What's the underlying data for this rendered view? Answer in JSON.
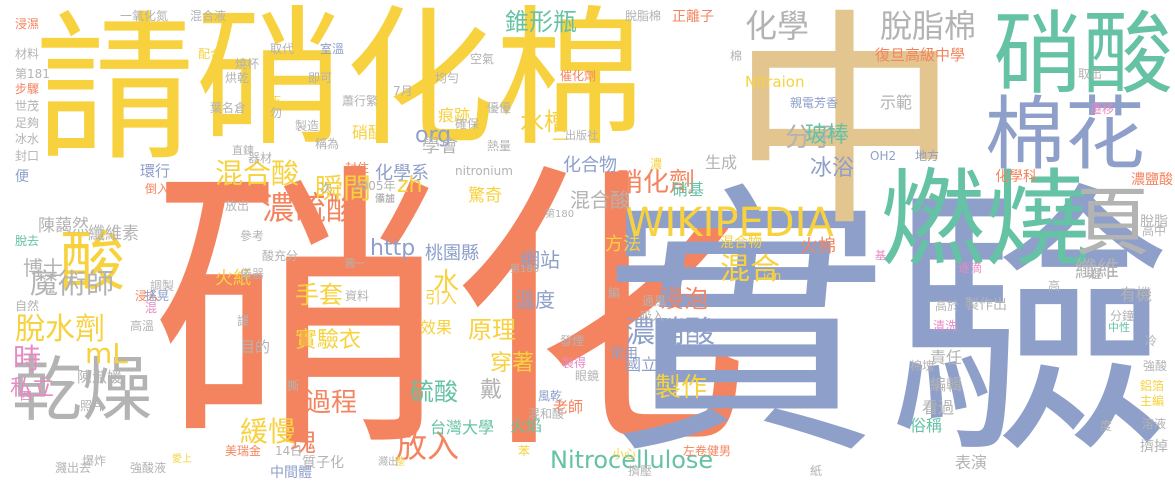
{
  "palette": {
    "yellow": "#f7d23e",
    "orange": "#f4845f",
    "tan": "#e3c58f",
    "blue": "#8e9fca",
    "green": "#66c2a5",
    "pink": "#e78ac3",
    "gray": "#b3b3b3",
    "lime": "#a6d854"
  },
  "words": [
    {
      "t": "硝化",
      "c": "orange"
    },
    {
      "t": "實驗",
      "c": "blue"
    },
    {
      "t": "中",
      "c": "tan"
    },
    {
      "t": "硝化棉",
      "c": "yellow"
    },
    {
      "t": "請",
      "c": "yellow"
    },
    {
      "t": "燃燒",
      "c": "green"
    },
    {
      "t": "硝酸",
      "c": "green"
    },
    {
      "t": "棉花",
      "c": "blue"
    },
    {
      "t": "乾燥",
      "c": "gray"
    },
    {
      "t": "頁",
      "c": "gray"
    },
    {
      "t": "酸",
      "c": "yellow"
    },
    {
      "t": "WIKIPEDIA",
      "c": "yellow"
    },
    {
      "t": "化學",
      "c": "gray"
    },
    {
      "t": "脫",
      "c": "gray"
    },
    {
      "t": "脂棉",
      "c": "gray"
    },
    {
      "t": "混合酸",
      "c": "yellow"
    },
    {
      "t": "魔術師",
      "c": "gray"
    },
    {
      "t": "脫水劑",
      "c": "yellow"
    },
    {
      "t": "mL",
      "c": "yellow"
    },
    {
      "t": "時",
      "c": "pink"
    },
    {
      "t": "濃硫酸",
      "c": "orange"
    },
    {
      "t": "瞬間",
      "c": "yellow"
    },
    {
      "t": "過程",
      "c": "orange"
    },
    {
      "t": "緩慢",
      "c": "yellow"
    },
    {
      "t": "塊",
      "c": "orange"
    },
    {
      "t": "放入",
      "c": "orange"
    },
    {
      "t": "硝化劑",
      "c": "orange"
    },
    {
      "t": "濃硝酸",
      "c": "blue"
    },
    {
      "t": "混合",
      "c": "yellow"
    },
    {
      "t": "Nitrocellulose",
      "c": "green"
    },
    {
      "t": "錐形瓶",
      "c": "green"
    },
    {
      "t": "水槽",
      "c": "yellow"
    },
    {
      "t": "分子",
      "c": "gray"
    },
    {
      "t": "冰浴",
      "c": "blue"
    },
    {
      "t": "玻棒",
      "c": "green"
    },
    {
      "t": "纖維",
      "c": "gray"
    },
    {
      "t": "手套",
      "c": "yellow"
    },
    {
      "t": "實驗衣",
      "c": "yellow"
    },
    {
      "t": "浸泡",
      "c": "orange"
    },
    {
      "t": "製作",
      "c": "yellow"
    },
    {
      "t": "原理",
      "c": "yellow"
    },
    {
      "t": "穿著",
      "c": "yellow"
    },
    {
      "t": "硫酸",
      "c": "green"
    },
    {
      "t": "戴",
      "c": "gray"
    },
    {
      "t": "水",
      "c": "yellow"
    },
    {
      "t": "網站",
      "c": "blue"
    },
    {
      "t": "溫度",
      "c": "blue"
    },
    {
      "t": "org",
      "c": "blue"
    },
    {
      "t": "zh",
      "c": "yellow"
    },
    {
      "t": "http",
      "c": "blue"
    },
    {
      "t": "混合酸",
      "c": "gray"
    },
    {
      "t": "化學系",
      "c": "blue"
    },
    {
      "t": "桃園縣",
      "c": "blue"
    },
    {
      "t": "台灣大學",
      "c": "green"
    },
    {
      "t": "火焰",
      "c": "green"
    },
    {
      "t": "學會",
      "c": "gray"
    },
    {
      "t": "痕跡",
      "c": "yellow"
    },
    {
      "t": "硝基",
      "c": "green"
    },
    {
      "t": "生成",
      "c": "gray"
    },
    {
      "t": "示範",
      "c": "gray"
    },
    {
      "t": "責任",
      "c": "gray"
    },
    {
      "t": "有機",
      "c": "gray"
    },
    {
      "t": "私立",
      "c": "pink"
    },
    {
      "t": "博士",
      "c": "gray"
    },
    {
      "t": "火紙",
      "c": "yellow"
    },
    {
      "t": "引入",
      "c": "yellow"
    },
    {
      "t": "效果",
      "c": "yellow"
    },
    {
      "t": "方法",
      "c": "yellow"
    },
    {
      "t": "火棉",
      "c": "orange"
    },
    {
      "t": "表演",
      "c": "gray"
    },
    {
      "t": "俗稱",
      "c": "green"
    },
    {
      "t": "看過",
      "c": "gray"
    },
    {
      "t": "編輯",
      "c": "gray"
    },
    {
      "t": "Nitraion",
      "c": "yellow"
    },
    {
      "t": "復旦高級中學",
      "c": "orange"
    },
    {
      "t": "正離子",
      "c": "orange"
    },
    {
      "t": "陳藹然",
      "c": "gray"
    },
    {
      "t": "纖維素",
      "c": "gray"
    },
    {
      "t": "陳淑媛",
      "c": "gray"
    },
    {
      "t": "老師",
      "c": "orange"
    },
    {
      "t": "國立",
      "c": "blue"
    },
    {
      "t": "化合物",
      "c": "blue"
    },
    {
      "t": "混合物",
      "c": "yellow"
    },
    {
      "t": "製作出",
      "c": "gray"
    },
    {
      "t": "中間體",
      "c": "blue"
    },
    {
      "t": "質子化",
      "c": "gray"
    },
    {
      "t": "二",
      "c": "yellow"
    },
    {
      "t": "驚奇",
      "c": "yellow"
    },
    {
      "t": "硝醯",
      "c": "yellow"
    },
    {
      "t": "環行",
      "c": "blue"
    },
    {
      "t": "目的",
      "c": "gray"
    },
    {
      "t": "常用",
      "c": "blue"
    },
    {
      "t": "nitronium",
      "c": "gray"
    },
    {
      "t": "混合液",
      "c": "gray"
    },
    {
      "t": "一氧化氮",
      "c": "gray"
    },
    {
      "t": "取代",
      "c": "gray"
    },
    {
      "t": "配合",
      "c": "yellow"
    },
    {
      "t": "燒杯",
      "c": "gray"
    },
    {
      "t": "烘乾",
      "c": "gray"
    },
    {
      "t": "即可",
      "c": "gray"
    },
    {
      "t": "室溫",
      "c": "blue"
    },
    {
      "t": "空氣",
      "c": "gray"
    },
    {
      "t": "均勻",
      "c": "gray"
    },
    {
      "t": "催化劑",
      "c": "orange"
    },
    {
      "t": "脫脂棉",
      "c": "gray"
    },
    {
      "t": "棉",
      "c": "gray"
    },
    {
      "t": "取出",
      "c": "gray"
    },
    {
      "t": "親電芳香",
      "c": "blue"
    },
    {
      "t": "OH2",
      "c": "blue"
    },
    {
      "t": "地方",
      "c": "blue"
    },
    {
      "t": "濃",
      "c": "yellow"
    },
    {
      "t": "化學科",
      "c": "orange"
    },
    {
      "t": "分鐘",
      "c": "gray"
    },
    {
      "t": "濃鹽酸",
      "c": "orange"
    },
    {
      "t": "脫脂",
      "c": "gray"
    },
    {
      "t": "基",
      "c": "pink"
    },
    {
      "t": "高於",
      "c": "gray"
    },
    {
      "t": "清洗",
      "c": "pink"
    },
    {
      "t": "中性",
      "c": "green"
    },
    {
      "t": "強酸",
      "c": "gray"
    },
    {
      "t": "鋁箔",
      "c": "yellow"
    },
    {
      "t": "主編",
      "c": "yellow"
    },
    {
      "t": "溶液",
      "c": "gray"
    },
    {
      "t": "擠掉",
      "c": "gray"
    },
    {
      "t": "紙",
      "c": "gray"
    },
    {
      "t": "擠壓",
      "c": "gray"
    },
    {
      "t": "發煙",
      "c": "gray"
    },
    {
      "t": "製得",
      "c": "pink"
    },
    {
      "t": "混和酸",
      "c": "gray"
    },
    {
      "t": "風乾",
      "c": "blue"
    },
    {
      "t": "小心",
      "c": "yellow"
    },
    {
      "t": "左卷健男",
      "c": "orange"
    },
    {
      "t": "眼鏡",
      "c": "gray"
    },
    {
      "t": "苯",
      "c": "yellow"
    },
    {
      "t": "整",
      "c": "yellow"
    },
    {
      "t": "濺出",
      "c": "gray"
    },
    {
      "t": "14日",
      "c": "gray"
    },
    {
      "t": "美瑞金",
      "c": "orange"
    },
    {
      "t": "愛上",
      "c": "yellow"
    },
    {
      "t": "強酸液",
      "c": "gray"
    },
    {
      "t": "爆炸",
      "c": "gray"
    },
    {
      "t": "濺出去",
      "c": "gray"
    },
    {
      "t": "照片",
      "c": "gray"
    },
    {
      "t": "四",
      "c": "pink"
    },
    {
      "t": "高溫",
      "c": "gray"
    },
    {
      "t": "調製",
      "c": "gray"
    },
    {
      "t": "混",
      "c": "pink"
    },
    {
      "t": "浸入",
      "c": "orange"
    },
    {
      "t": "搖晃",
      "c": "blue"
    },
    {
      "t": "自然",
      "c": "gray"
    },
    {
      "t": "脫去",
      "c": "green"
    },
    {
      "t": "便",
      "c": "blue"
    },
    {
      "t": "封口",
      "c": "gray"
    },
    {
      "t": "冰水",
      "c": "gray"
    },
    {
      "t": "足夠",
      "c": "gray"
    },
    {
      "t": "世茂",
      "c": "gray"
    },
    {
      "t": "步驟",
      "c": "orange"
    },
    {
      "t": "第181",
      "c": "gray"
    },
    {
      "t": "材料",
      "c": "gray"
    },
    {
      "t": "浸濕",
      "c": "orange"
    },
    {
      "t": "倒入",
      "c": "orange"
    },
    {
      "t": "封住",
      "c": "orange"
    },
    {
      "t": "2005年",
      "c": "gray"
    },
    {
      "t": "次",
      "c": "gray"
    },
    {
      "t": "放出",
      "c": "gray"
    },
    {
      "t": "添加",
      "c": "gray"
    },
    {
      "t": "備註",
      "c": "gray"
    },
    {
      "t": "第180",
      "c": "gray"
    },
    {
      "t": "第180",
      "c": "gray"
    },
    {
      "t": "圖一",
      "c": "gray"
    },
    {
      "t": "酸充分",
      "c": "gray"
    },
    {
      "t": "參考",
      "c": "gray"
    },
    {
      "t": "儀器",
      "c": "gray"
    },
    {
      "t": "資料",
      "c": "gray"
    },
    {
      "t": "譯",
      "c": "gray"
    },
    {
      "t": "撕",
      "c": "gray"
    },
    {
      "t": "五",
      "c": "yellow"
    },
    {
      "t": "葉名倉",
      "c": "gray"
    },
    {
      "t": "勿",
      "c": "gray"
    },
    {
      "t": "直鍊",
      "c": "gray"
    },
    {
      "t": "稱為",
      "c": "gray"
    },
    {
      "t": "器材",
      "c": "gray"
    },
    {
      "t": "製造",
      "c": "gray"
    },
    {
      "t": "蕭行繁",
      "c": "gray"
    },
    {
      "t": "7月",
      "c": "gray"
    },
    {
      "t": "優優",
      "c": "gray"
    },
    {
      "t": "熱量",
      "c": "gray"
    },
    {
      "t": "確保",
      "c": "gray"
    },
    {
      "t": "出版社",
      "c": "gray"
    },
    {
      "t": "遷移",
      "c": "pink"
    },
    {
      "t": "逐滴",
      "c": "pink"
    },
    {
      "t": "高中",
      "c": "gray"
    },
    {
      "t": "裡",
      "c": "gray"
    },
    {
      "t": "冷",
      "c": "gray"
    },
    {
      "t": "度",
      "c": "gray"
    },
    {
      "t": "ion",
      "c": "yellow"
    },
    {
      "t": "編",
      "c": "gray"
    },
    {
      "t": "吸入",
      "c": "gray"
    },
    {
      "t": "通風",
      "c": "gray"
    },
    {
      "t": "棉塊",
      "c": "gray"
    },
    {
      "t": "高",
      "c": "gray"
    }
  ]
}
